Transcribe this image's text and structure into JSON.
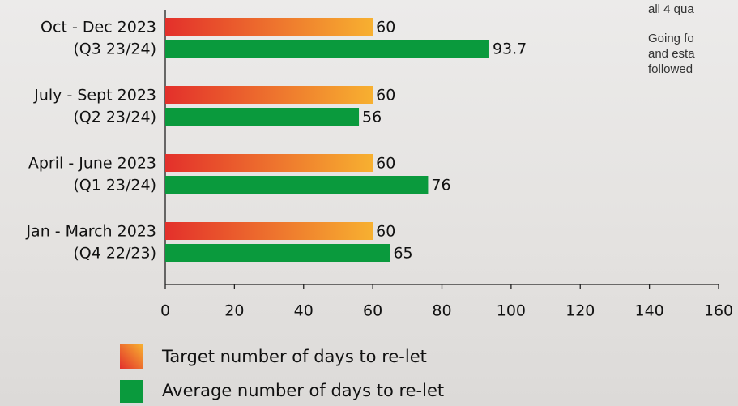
{
  "chart_data": {
    "type": "bar",
    "orientation": "horizontal",
    "categories": [
      [
        "Oct - Dec 2023",
        "(Q3 23/24)"
      ],
      [
        "July - Sept 2023",
        "(Q2 23/24)"
      ],
      [
        "April - June 2023",
        "(Q1 23/24)"
      ],
      [
        "Jan - March 2023",
        "(Q4 22/23)"
      ]
    ],
    "series": [
      {
        "name": "Target number of days to re-let",
        "colors": [
          "#e3302b",
          "#f7b030"
        ],
        "values": [
          60,
          60,
          60,
          60
        ]
      },
      {
        "name": "Average number of days to re-let",
        "color": "#0a9a3d",
        "values": [
          93.7,
          56,
          76,
          65
        ]
      }
    ],
    "xlim": [
      0,
      160
    ],
    "xticks": [
      0,
      20,
      40,
      60,
      80,
      100,
      120,
      140,
      160
    ]
  },
  "side_text": [
    "all 4 qua",
    "Going fo",
    "and esta",
    "followed"
  ]
}
